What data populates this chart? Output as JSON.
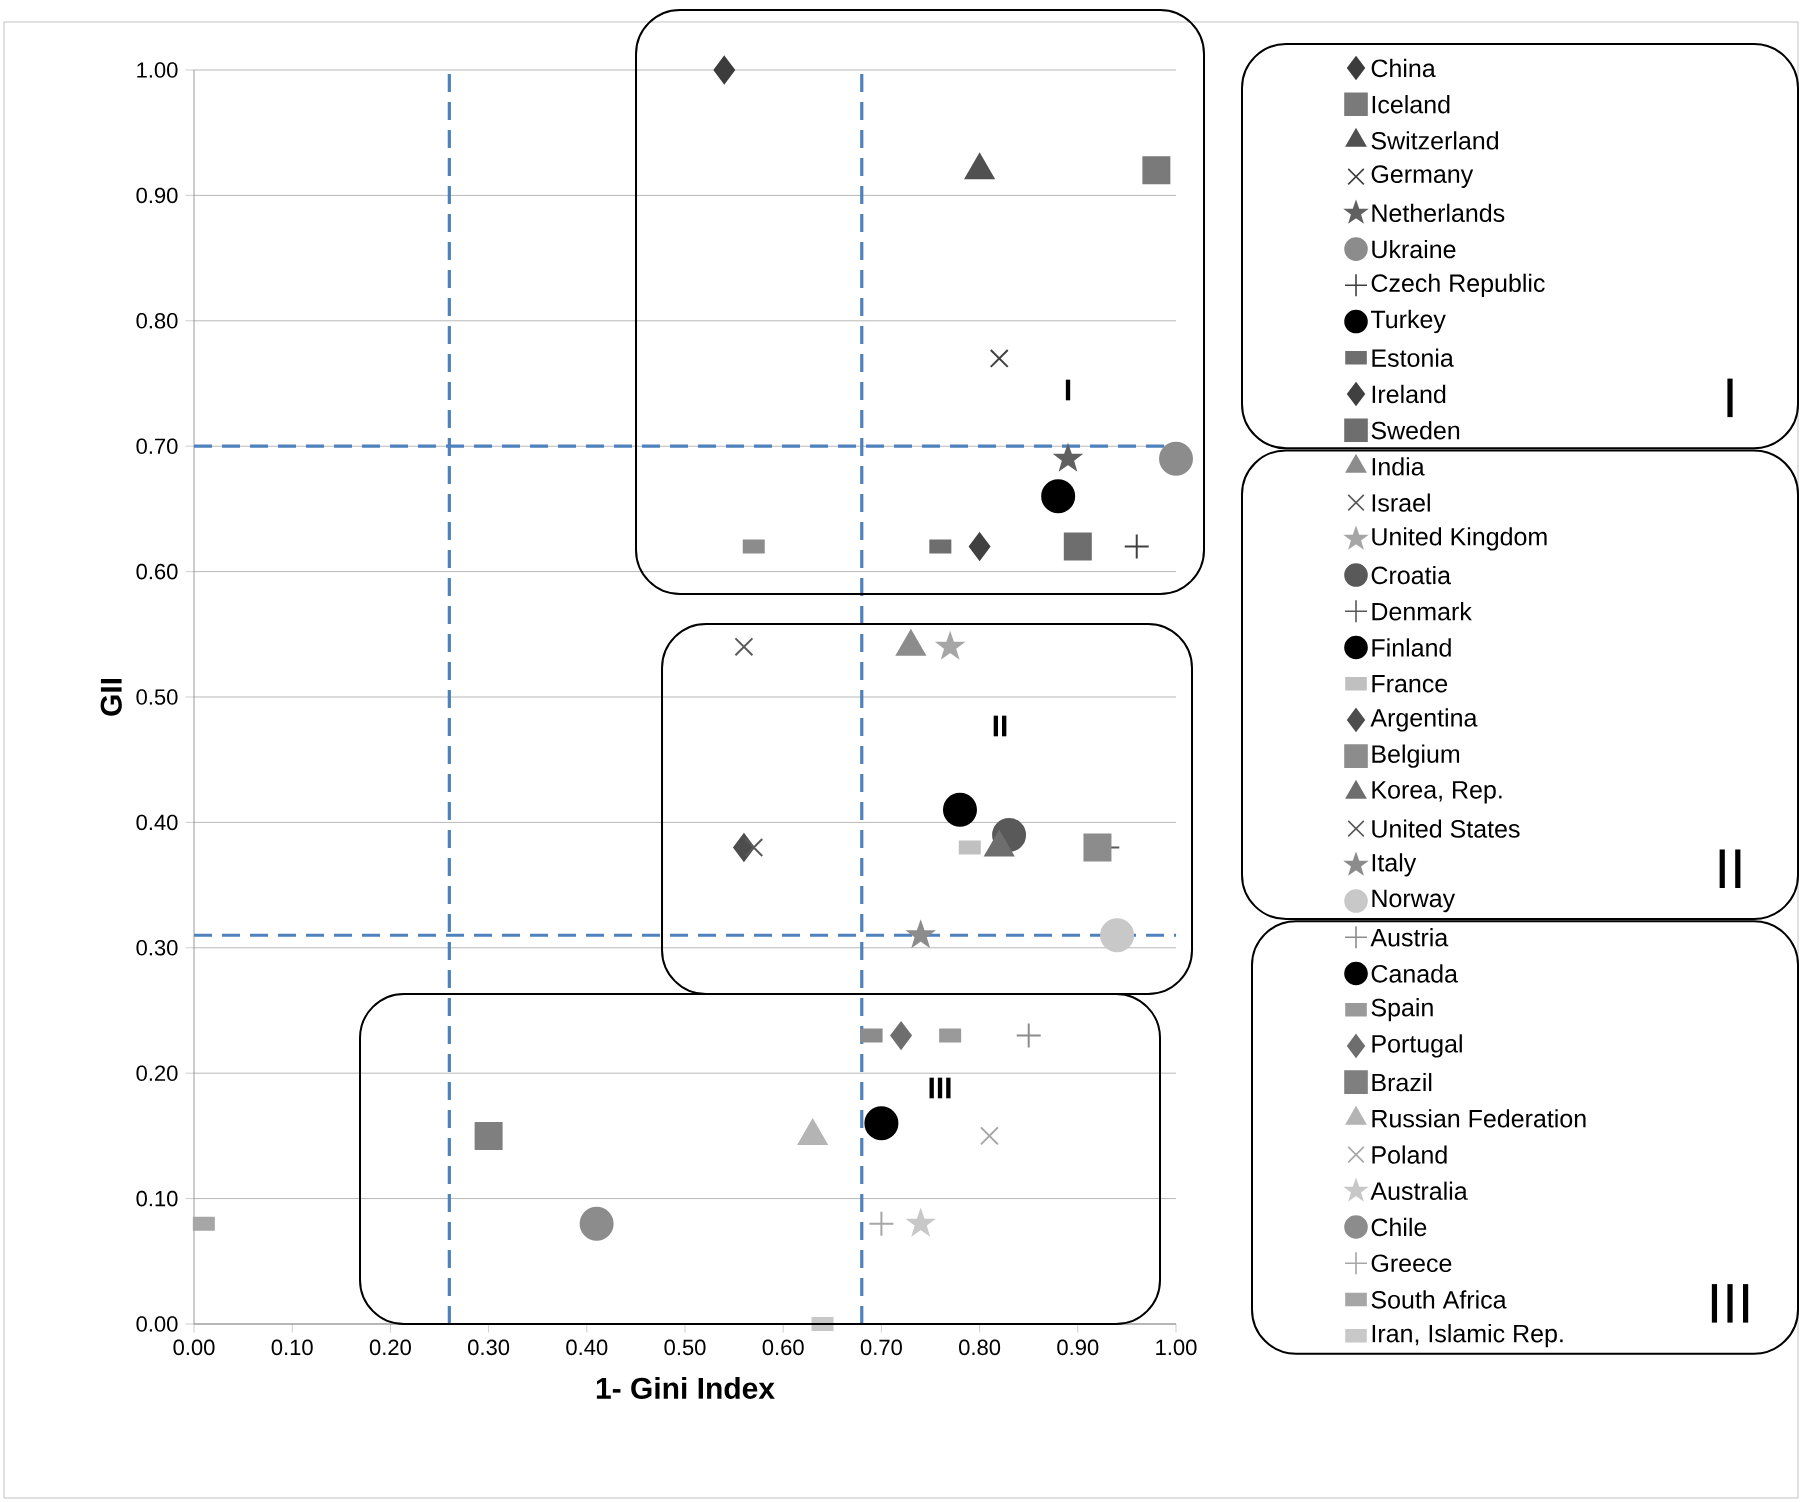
{
  "chart_data": {
    "type": "scatter",
    "xlabel": "1- Gini Index",
    "ylabel": "GII",
    "xlim": [
      0,
      1
    ],
    "ylim": [
      0,
      1
    ],
    "xticks": [
      {
        "value": 0,
        "label": "0.00"
      },
      {
        "value": 0.1,
        "label": "0.10"
      },
      {
        "value": 0.2,
        "label": "0.20"
      },
      {
        "value": 0.3,
        "label": "0.30"
      },
      {
        "value": 0.4,
        "label": "0.40"
      },
      {
        "value": 0.5,
        "label": "0.50"
      },
      {
        "value": 0.6,
        "label": "0.60"
      },
      {
        "value": 0.7,
        "label": "0.70"
      },
      {
        "value": 0.8,
        "label": "0.80"
      },
      {
        "value": 0.9,
        "label": "0.90"
      },
      {
        "value": 1,
        "label": "1.00"
      }
    ],
    "yticks": [
      {
        "value": 0,
        "label": "0.00"
      },
      {
        "value": 0.1,
        "label": "0.10"
      },
      {
        "value": 0.2,
        "label": "0.20"
      },
      {
        "value": 0.3,
        "label": "0.30"
      },
      {
        "value": 0.4,
        "label": "0.40"
      },
      {
        "value": 0.5,
        "label": "0.50"
      },
      {
        "value": 0.6,
        "label": "0.60"
      },
      {
        "value": 0.7,
        "label": "0.70"
      },
      {
        "value": 0.8,
        "label": "0.80"
      },
      {
        "value": 0.9,
        "label": "0.90"
      },
      {
        "value": 1,
        "label": "1.00"
      }
    ],
    "grid": "y",
    "legend": "right",
    "ref_lines": [
      {
        "axis": "x",
        "value": 0.26,
        "color": "#4f81bd",
        "line_style": "dashed"
      },
      {
        "axis": "x",
        "value": 0.68,
        "color": "#4f81bd",
        "line_style": "dashed"
      },
      {
        "axis": "y",
        "value": 0.7,
        "color": "#4f81bd",
        "line_style": "dashed"
      },
      {
        "axis": "y",
        "value": 0.31,
        "color": "#4f81bd",
        "line_style": "dashed"
      }
    ],
    "annotations": [
      "I",
      "II",
      "III",
      "I",
      "II",
      "III"
    ],
    "series": [
      {
        "name": "China",
        "marker": "diamond",
        "color": "#3c3c3c",
        "x": [
          0.54
        ],
        "values": [
          1.0
        ]
      },
      {
        "name": "Iceland",
        "marker": "square",
        "color": "#7a7a7a",
        "x": [
          0.98
        ],
        "values": [
          0.92
        ]
      },
      {
        "name": "Switzerland",
        "marker": "triangle",
        "color": "#505050",
        "x": [
          0.8
        ],
        "values": [
          0.92
        ]
      },
      {
        "name": "Germany",
        "marker": "cross",
        "color": "#404040",
        "x": [
          0.82
        ],
        "values": [
          0.77
        ]
      },
      {
        "name": "Netherlands",
        "marker": "star",
        "color": "#606060",
        "x": [
          0.89
        ],
        "values": [
          0.69
        ]
      },
      {
        "name": "Ukraine",
        "marker": "circle",
        "color": "#8c8c8c",
        "x": [
          1.0
        ],
        "values": [
          0.69
        ]
      },
      {
        "name": "Czech Republic",
        "marker": "plus",
        "color": "#404040",
        "x": [
          0.96
        ],
        "values": [
          0.62
        ]
      },
      {
        "name": "Turkey",
        "marker": "circle",
        "color": "#000000",
        "x": [
          0.88
        ],
        "values": [
          0.66
        ]
      },
      {
        "name": "Estonia",
        "color": "#6e6e6e",
        "x": [
          0.76
        ],
        "values": [
          0.62
        ]
      },
      {
        "name": "Ireland",
        "marker": "diamond",
        "color": "#404040",
        "x": [
          0.8
        ],
        "values": [
          0.62
        ]
      },
      {
        "name": "Sweden",
        "marker": "square",
        "color": "#6e6e6e",
        "x": [
          0.9
        ],
        "values": [
          0.62
        ]
      },
      {
        "color": "#8c8c8c",
        "x": [
          0.57
        ],
        "values": [
          0.62
        ]
      },
      {
        "name": "India",
        "marker": "triangle",
        "color": "#8c8c8c",
        "x": [
          0.73
        ],
        "values": [
          0.54
        ]
      },
      {
        "name": "Israel",
        "marker": "cross",
        "color": "#595959",
        "x": [
          0.56
        ],
        "values": [
          0.54
        ]
      },
      {
        "name": "United Kingdom",
        "marker": "star",
        "color": "#a6a6a6",
        "x": [
          0.77
        ],
        "values": [
          0.54
        ]
      },
      {
        "name": "Croatia",
        "marker": "circle",
        "color": "#595959",
        "x": [
          0.83
        ],
        "values": [
          0.39
        ]
      },
      {
        "name": "Denmark",
        "marker": "plus",
        "color": "#595959",
        "x": [
          0.93
        ],
        "values": [
          0.38
        ]
      },
      {
        "name": "Finland",
        "marker": "circle",
        "color": "#000000",
        "x": [
          0.78
        ],
        "values": [
          0.41
        ]
      },
      {
        "name": "France",
        "color": "#c0c0c0",
        "x": [
          0.79
        ],
        "values": [
          0.38
        ]
      },
      {
        "name": "Argentina",
        "marker": "diamond",
        "color": "#4d4d4d",
        "x": [
          0.56
        ],
        "values": [
          0.38
        ]
      },
      {
        "name": "Belgium",
        "marker": "square",
        "color": "#8c8c8c",
        "x": [
          0.92
        ],
        "values": [
          0.38
        ]
      },
      {
        "name": "Korea, Rep.",
        "marker": "triangle",
        "color": "#6e6e6e",
        "x": [
          0.82
        ],
        "values": [
          0.38
        ]
      },
      {
        "name": "United States",
        "marker": "cross",
        "color": "#595959",
        "x": [
          0.57
        ],
        "values": [
          0.38
        ]
      },
      {
        "name": "Italy",
        "marker": "star",
        "color": "#8c8c8c",
        "x": [
          0.74
        ],
        "values": [
          0.31
        ]
      },
      {
        "name": "Norway",
        "marker": "circle",
        "color": "#c8c8c8",
        "x": [
          0.94
        ],
        "values": [
          0.31
        ]
      },
      {
        "name": "Austria",
        "marker": "plus",
        "color": "#8c8c8c",
        "x": [
          0.85
        ],
        "values": [
          0.23
        ]
      },
      {
        "name": "Canada",
        "marker": "circle",
        "color": "#000000",
        "x": [
          0.7
        ],
        "values": [
          0.16
        ]
      },
      {
        "name": "Spain",
        "color": "#9a9a9a",
        "x": [
          0.77
        ],
        "values": [
          0.23
        ]
      },
      {
        "name": "Portugal",
        "marker": "diamond",
        "color": "#6e6e6e",
        "x": [
          0.72
        ],
        "values": [
          0.23
        ]
      },
      {
        "name": "Brazil",
        "marker": "square",
        "color": "#7f7f7f",
        "x": [
          0.3
        ],
        "values": [
          0.15
        ]
      },
      {
        "name": "Russian Federation",
        "marker": "triangle",
        "color": "#b4b4b4",
        "x": [
          0.63
        ],
        "values": [
          0.15
        ]
      },
      {
        "name": "Poland",
        "marker": "cross",
        "color": "#a6a6a6",
        "x": [
          0.81
        ],
        "values": [
          0.15
        ]
      },
      {
        "name": "Australia",
        "marker": "star",
        "color": "#c8c8c8",
        "x": [
          0.74
        ],
        "values": [
          0.08
        ]
      },
      {
        "name": "Chile",
        "marker": "circle",
        "color": "#8c8c8c",
        "x": [
          0.41
        ],
        "values": [
          0.08
        ]
      },
      {
        "name": "Greece",
        "marker": "plus",
        "color": "#a6a6a6",
        "x": [
          0.7
        ],
        "values": [
          0.08
        ]
      },
      {
        "name": "South Africa",
        "color": "#a6a6a6",
        "x": [
          0.01
        ],
        "values": [
          0.08
        ]
      },
      {
        "name": "Iran, Islamic Rep.",
        "color": "#c8c8c8",
        "x": [
          0.64
        ],
        "values": [
          0.0
        ]
      },
      {
        "color": "#8c8c8c",
        "x": [
          0.69
        ],
        "values": [
          0.23
        ]
      }
    ]
  }
}
